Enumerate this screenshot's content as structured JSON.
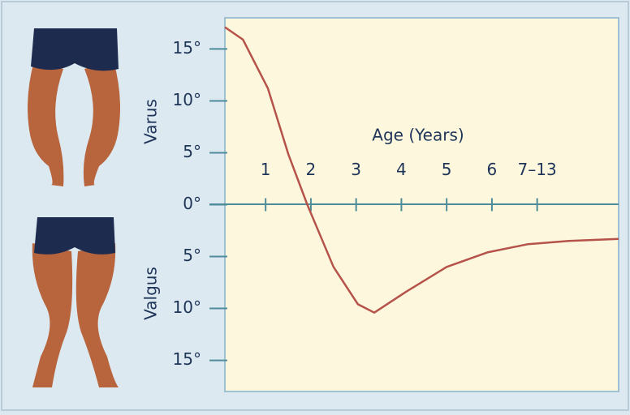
{
  "chart_data": {
    "type": "line",
    "x_label": "Age (Years)",
    "y_labels": [
      "Varus",
      "Valgus"
    ],
    "x": [
      0.1,
      0.5,
      1.05,
      1.5,
      1.92,
      2.5,
      3.04,
      3.4,
      4.1,
      5.0,
      5.9,
      6.8,
      7.7,
      8.8
    ],
    "y": [
      17.1,
      15.9,
      11.2,
      4.9,
      0,
      -6,
      -9.6,
      -10.4,
      -8.4,
      -6,
      -4.6,
      -3.8,
      -3.5,
      -3.3
    ],
    "color": "#b5524a",
    "xlim": [
      0.1,
      8.8
    ],
    "xticks": [
      1,
      2,
      3,
      4,
      5,
      6,
      {
        "value": 7,
        "label": "7–13"
      }
    ],
    "ylim": [
      -18,
      18
    ],
    "yticks": [
      {
        "value": 15,
        "label": "15°"
      },
      {
        "value": 10,
        "label": "10°"
      },
      {
        "value": 5,
        "label": "5°"
      },
      {
        "value": 0,
        "label": "0°"
      },
      {
        "value": -5,
        "label": "5°"
      },
      {
        "value": -10,
        "label": "10°"
      },
      {
        "value": -15,
        "label": "15°"
      }
    ]
  }
}
